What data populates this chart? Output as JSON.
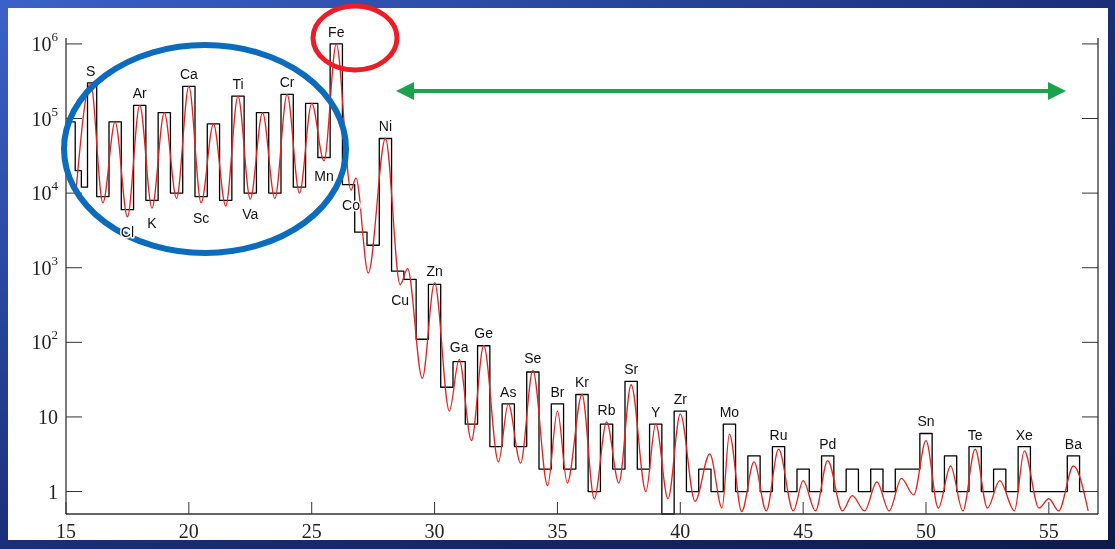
{
  "chart_data": {
    "type": "line",
    "log": "y",
    "xlim": [
      15,
      57
    ],
    "ylim": [
      0.5,
      1200000
    ],
    "xticks": [
      15,
      20,
      25,
      30,
      35,
      40,
      45,
      50,
      55
    ],
    "yticks": [
      1,
      10,
      {
        "value": 100,
        "label": "10$^{2}$"
      },
      {
        "value": 1000,
        "label": "10$^{3}$"
      },
      {
        "value": 10000,
        "label": "10$^{4}$"
      },
      {
        "value": 100000,
        "label": "10$^{5}$"
      },
      {
        "value": 1000000,
        "label": "10$^{6}$"
      }
    ],
    "series": [
      {
        "type": "step",
        "color": "#000000",
        "x": [
          15.25,
          15.5,
          15.75,
          16,
          16.5,
          17,
          17.5,
          18,
          18.5,
          19,
          19.5,
          20,
          20.5,
          21,
          21.5,
          22,
          22.5,
          23,
          23.5,
          24,
          24.5,
          25,
          25.5,
          26,
          26.5,
          27,
          27.5,
          28,
          28.5,
          29,
          29.5,
          30,
          30.5,
          31,
          31.5,
          32,
          32.5,
          33,
          33.5,
          34,
          34.5,
          35,
          35.5,
          36,
          36.5,
          37,
          37.5,
          38,
          38.5,
          39,
          39.5,
          40,
          40.5,
          41,
          41.5,
          42,
          42.5,
          43,
          43.5,
          44,
          44.5,
          45,
          45.5,
          46,
          46.5,
          47,
          47.5,
          48,
          48.5,
          49,
          49.5,
          50,
          50.5,
          51,
          51.5,
          52,
          52.5,
          53,
          53.5,
          54,
          54.5,
          55,
          55.5,
          56,
          56.5
        ],
        "values": [
          90000,
          20000,
          12000,
          300000,
          9000,
          90000,
          6000,
          150000,
          8000,
          120000,
          10000,
          270000,
          9000,
          85000,
          8000,
          200000,
          10000,
          120000,
          10000,
          210000,
          12000,
          160000,
          30000,
          1000000,
          13000,
          3000,
          2000,
          54000,
          900,
          700,
          110,
          600,
          25,
          55,
          8,
          90,
          4,
          15,
          4,
          40,
          2,
          15,
          2,
          20,
          1,
          8,
          2,
          30,
          2,
          8,
          0.5,
          12,
          1,
          2,
          1,
          8,
          1,
          3,
          1,
          4,
          1,
          2,
          1,
          3,
          1,
          2,
          1,
          2,
          1,
          2,
          2,
          6,
          1,
          3,
          1,
          4,
          1,
          2,
          1,
          4,
          1,
          1,
          1,
          3,
          1
        ]
      },
      {
        "color": "#e0231e",
        "x": [
          15.4,
          16,
          16.5,
          17,
          17.5,
          18,
          18.5,
          19,
          19.5,
          20,
          20.5,
          21,
          21.5,
          22,
          22.5,
          23,
          23.5,
          24,
          24.5,
          25,
          25.5,
          26,
          26.6,
          26.8,
          27.3,
          28,
          28.6,
          28.9,
          29.5,
          30,
          30.6,
          31,
          31.5,
          32,
          32.6,
          33,
          33.5,
          34,
          34.6,
          35,
          35.4,
          36,
          36.5,
          37,
          37.5,
          38,
          38.6,
          39,
          39.5,
          40,
          40.6,
          41.2,
          41.7,
          42,
          42.5,
          43,
          43.5,
          44,
          44.6,
          45,
          45.5,
          46,
          46.6,
          47,
          47.5,
          48,
          48.5,
          49,
          49.5,
          50,
          50.5,
          51,
          51.5,
          52,
          52.5,
          53,
          53.6,
          54,
          54.6,
          55,
          55.4,
          56,
          56.6
        ],
        "values": [
          10000,
          300000,
          7400,
          90000,
          4800,
          150000,
          6300,
          120000,
          8500,
          270000,
          7400,
          85000,
          6700,
          200000,
          8300,
          120000,
          8500,
          210000,
          10000,
          160000,
          27000,
          1000000,
          11000,
          16000,
          850,
          54000,
          590,
          970,
          33,
          630,
          12,
          59,
          4.8,
          91,
          2.5,
          15,
          2.4,
          42,
          1.2,
          12,
          1.3,
          20,
          0.8,
          8.6,
          1.3,
          27,
          1,
          8.1,
          0.8,
          11,
          0.74,
          3.2,
          0.6,
          5.9,
          0.54,
          2.5,
          0.55,
          3.7,
          0.55,
          1.4,
          0.55,
          2.6,
          0.55,
          0.88,
          0.55,
          1.35,
          0.55,
          1.5,
          0.9,
          4.8,
          0.6,
          2.2,
          0.55,
          3.7,
          0.6,
          1.4,
          0.55,
          3.5,
          0.6,
          0.8,
          0.55,
          2.2,
          0.55
        ]
      }
    ],
    "annotations": [
      {
        "text": "S",
        "x": 16,
        "y": 300000
      },
      {
        "text": "Ar",
        "x": 18,
        "y": 150000
      },
      {
        "text": "Ca",
        "x": 20,
        "y": 270000
      },
      {
        "text": "Ti",
        "x": 22,
        "y": 200000
      },
      {
        "text": "Cr",
        "x": 24,
        "y": 210000
      },
      {
        "text": "Cl",
        "x": 17.5,
        "y": 4800
      },
      {
        "text": "K",
        "x": 18.5,
        "y": 6300
      },
      {
        "text": "Sc",
        "x": 20.5,
        "y": 7400
      },
      {
        "text": "Va",
        "x": 22.5,
        "y": 8300
      },
      {
        "text": "Mn",
        "x": 25.5,
        "y": 27000
      },
      {
        "text": "Co",
        "x": 26.6,
        "y": 11000
      },
      {
        "text": "Fe",
        "x": 26,
        "y": 1000000
      },
      {
        "text": "Ni",
        "x": 28,
        "y": 54000
      },
      {
        "text": "Cu",
        "x": 28.6,
        "y": 590
      },
      {
        "text": "Zn",
        "x": 30,
        "y": 630
      },
      {
        "text": "Ga",
        "x": 31,
        "y": 59
      },
      {
        "text": "Ge",
        "x": 32,
        "y": 91
      },
      {
        "text": "As",
        "x": 33,
        "y": 15
      },
      {
        "text": "Se",
        "x": 34,
        "y": 42
      },
      {
        "text": "Br",
        "x": 35,
        "y": 12
      },
      {
        "text": "Kr",
        "x": 36,
        "y": 20
      },
      {
        "text": "Rb",
        "x": 37,
        "y": 8.6
      },
      {
        "text": "Sr",
        "x": 38,
        "y": 27
      },
      {
        "text": "Y",
        "x": 39,
        "y": 8.1
      },
      {
        "text": "Zr",
        "x": 40,
        "y": 11
      },
      {
        "text": "Mo",
        "x": 42,
        "y": 5.9
      },
      {
        "text": "Ru",
        "x": 44,
        "y": 3.7
      },
      {
        "text": "Pd",
        "x": 46,
        "y": 2.6
      },
      {
        "text": "Sn",
        "x": 50,
        "y": 4.8
      },
      {
        "text": "Te",
        "x": 52,
        "y": 3.7
      },
      {
        "text": "Xe",
        "x": 54,
        "y": 3.5
      },
      {
        "text": "Ba",
        "x": 56,
        "y": 2.2
      }
    ]
  }
}
